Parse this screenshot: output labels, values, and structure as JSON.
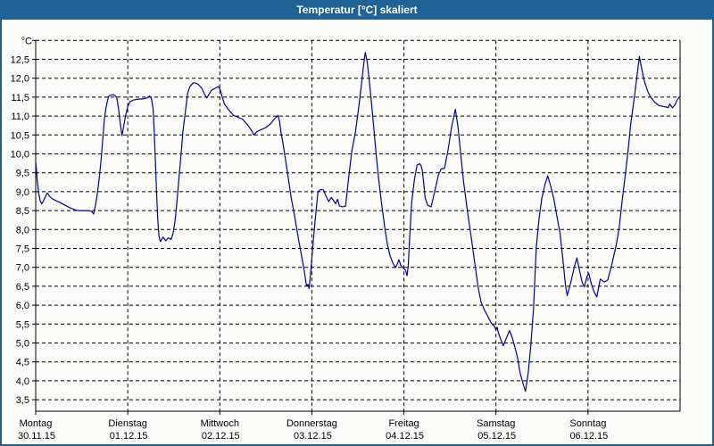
{
  "title": "Temperatur [°C] skaliert",
  "chart_data": {
    "type": "line",
    "title": "Temperatur [°C] skaliert",
    "unit_label": "°C",
    "grid": {
      "style": "dashed",
      "color": "#000000",
      "on": true
    },
    "colors": {
      "frame": "#1f6396",
      "plot_background": "#fcfdfa",
      "axis": "#000000"
    },
    "y_axis": {
      "min": 3.5,
      "max": 12.5,
      "step": 0.5,
      "top_edge_value": 13.0,
      "bottom_edge_value": 3.2,
      "tick_labels": [
        "12,5",
        "12,0",
        "11,5",
        "11,0",
        "10,5",
        "10,0",
        "9,5",
        "9,0",
        "8,5",
        "8,0",
        "7,5",
        "7,0",
        "6,5",
        "6,0",
        "5,5",
        "5,0",
        "4,5",
        "4,0",
        "3,5"
      ]
    },
    "x_axis": {
      "unit": "hours",
      "range_hours": [
        0,
        168
      ],
      "ticks": [
        {
          "day": "Montag",
          "date": "30.11.15"
        },
        {
          "day": "Dienstag",
          "date": "01.12.15"
        },
        {
          "day": "Mittwoch",
          "date": "02.12.15"
        },
        {
          "day": "Donnerstag",
          "date": "03.12.15"
        },
        {
          "day": "Freitag",
          "date": "04.12.15"
        },
        {
          "day": "Samstag",
          "date": "05.12.15"
        },
        {
          "day": "Sonntag",
          "date": "06.12.15"
        }
      ]
    },
    "series": [
      {
        "name": "Temperatur",
        "unit": "°C",
        "color": "#0000a0",
        "points_hour_temp": [
          [
            0,
            9.78
          ],
          [
            0.2,
            9.55
          ],
          [
            0.4,
            9.3
          ],
          [
            0.8,
            8.95
          ],
          [
            1.2,
            8.74
          ],
          [
            1.6,
            8.68
          ],
          [
            2.2,
            8.8
          ],
          [
            3,
            8.97
          ],
          [
            3.6,
            8.88
          ],
          [
            4.2,
            8.82
          ],
          [
            5.3,
            8.76
          ],
          [
            6.5,
            8.71
          ],
          [
            7.7,
            8.64
          ],
          [
            8.8,
            8.58
          ],
          [
            10,
            8.53
          ],
          [
            11.1,
            8.5
          ],
          [
            12.5,
            8.5
          ],
          [
            13.8,
            8.5
          ],
          [
            14.6,
            8.48
          ],
          [
            15.1,
            8.41
          ],
          [
            15.6,
            8.65
          ],
          [
            16,
            8.9
          ],
          [
            16.5,
            9.3
          ],
          [
            17,
            9.8
          ],
          [
            17.5,
            10.4
          ],
          [
            17.9,
            10.9
          ],
          [
            18.3,
            11.2
          ],
          [
            18.7,
            11.4
          ],
          [
            19,
            11.52
          ],
          [
            19.7,
            11.56
          ],
          [
            20.4,
            11.56
          ],
          [
            21.1,
            11.5
          ],
          [
            21.6,
            11.2
          ],
          [
            22,
            10.85
          ],
          [
            22.5,
            10.48
          ],
          [
            22.9,
            10.7
          ],
          [
            23.4,
            11
          ],
          [
            24,
            11.25
          ],
          [
            24.6,
            11.38
          ],
          [
            25.4,
            11.42
          ],
          [
            26.2,
            11.44
          ],
          [
            27.4,
            11.45
          ],
          [
            28.3,
            11.46
          ],
          [
            29.1,
            11.48
          ],
          [
            29.7,
            11.53
          ],
          [
            30.2,
            11.45
          ],
          [
            30.6,
            11.2
          ],
          [
            30.9,
            10.6
          ],
          [
            31.2,
            9.8
          ],
          [
            31.5,
            9
          ],
          [
            31.8,
            8.3
          ],
          [
            32.1,
            7.85
          ],
          [
            32.5,
            7.68
          ],
          [
            33.2,
            7.8
          ],
          [
            33.9,
            7.7
          ],
          [
            34.6,
            7.78
          ],
          [
            35.3,
            7.74
          ],
          [
            35.8,
            7.9
          ],
          [
            36.3,
            8.2
          ],
          [
            36.7,
            8.6
          ],
          [
            37.3,
            9.3
          ],
          [
            37.9,
            10
          ],
          [
            38.4,
            10.6
          ],
          [
            39,
            11.1
          ],
          [
            39.6,
            11.6
          ],
          [
            40.2,
            11.78
          ],
          [
            41.1,
            11.88
          ],
          [
            41.7,
            11.87
          ],
          [
            42.3,
            11.84
          ],
          [
            42.9,
            11.78
          ],
          [
            43.4,
            11.72
          ],
          [
            44,
            11.58
          ],
          [
            44.6,
            11.48
          ],
          [
            45.2,
            11.58
          ],
          [
            45.8,
            11.68
          ],
          [
            46.7,
            11.73
          ],
          [
            47.6,
            11.78
          ],
          [
            48.1,
            11.7
          ],
          [
            48.5,
            11.55
          ],
          [
            49.2,
            11.32
          ],
          [
            50.4,
            11.15
          ],
          [
            51.6,
            11.02
          ],
          [
            52.7,
            10.97
          ],
          [
            53.9,
            10.92
          ],
          [
            55.3,
            10.76
          ],
          [
            56.4,
            10.6
          ],
          [
            56.9,
            10.5
          ],
          [
            57.6,
            10.58
          ],
          [
            58.3,
            10.62
          ],
          [
            59.7,
            10.68
          ],
          [
            61.1,
            10.78
          ],
          [
            62.2,
            10.92
          ],
          [
            63.2,
            11.02
          ],
          [
            63.6,
            10.85
          ],
          [
            63.9,
            10.6
          ],
          [
            64.6,
            10.2
          ],
          [
            65.5,
            9.6
          ],
          [
            66.6,
            8.85
          ],
          [
            67.6,
            8.3
          ],
          [
            68.5,
            7.75
          ],
          [
            69.4,
            7.25
          ],
          [
            70.1,
            6.85
          ],
          [
            70.6,
            6.5
          ],
          [
            71,
            6.55
          ],
          [
            71.3,
            6.44
          ],
          [
            71.8,
            7
          ],
          [
            72.2,
            7.5
          ],
          [
            72.9,
            8.3
          ],
          [
            73.6,
            9
          ],
          [
            74.3,
            9.06
          ],
          [
            75,
            9.05
          ],
          [
            75.7,
            8.88
          ],
          [
            76.4,
            8.74
          ],
          [
            77.1,
            8.85
          ],
          [
            77.7,
            8.76
          ],
          [
            78.2,
            8.68
          ],
          [
            78.7,
            8.8
          ],
          [
            79.2,
            8.62
          ],
          [
            80.1,
            8.6
          ],
          [
            80.8,
            8.62
          ],
          [
            81.5,
            9.3
          ],
          [
            82.4,
            10.06
          ],
          [
            83.4,
            10.6
          ],
          [
            84.3,
            11.3
          ],
          [
            85,
            11.9
          ],
          [
            85.5,
            12.35
          ],
          [
            85.9,
            12.68
          ],
          [
            86.4,
            12.45
          ],
          [
            86.8,
            12.1
          ],
          [
            87.3,
            11.6
          ],
          [
            88,
            10.85
          ],
          [
            88.7,
            10.05
          ],
          [
            89.4,
            9.35
          ],
          [
            90.1,
            8.75
          ],
          [
            91,
            8.05
          ],
          [
            91.7,
            7.6
          ],
          [
            92.4,
            7.3
          ],
          [
            93.1,
            7.12
          ],
          [
            93.8,
            6.99
          ],
          [
            94.3,
            7.1
          ],
          [
            94.7,
            7.2
          ],
          [
            95.2,
            7.05
          ],
          [
            95.7,
            7
          ],
          [
            96.4,
            6.92
          ],
          [
            96.8,
            6.78
          ],
          [
            97.1,
            7
          ],
          [
            97.4,
            7.6
          ],
          [
            98,
            8.7
          ],
          [
            98.7,
            9.3
          ],
          [
            99.4,
            9.7
          ],
          [
            100.1,
            9.74
          ],
          [
            100.5,
            9.68
          ],
          [
            100.8,
            9.55
          ],
          [
            101.2,
            9.2
          ],
          [
            101.5,
            8.85
          ],
          [
            102.2,
            8.64
          ],
          [
            103.1,
            8.6
          ],
          [
            104,
            9
          ],
          [
            105,
            9.45
          ],
          [
            105.7,
            9.6
          ],
          [
            106.6,
            9.62
          ],
          [
            107.5,
            10.1
          ],
          [
            108.4,
            10.7
          ],
          [
            109.4,
            11.18
          ],
          [
            110.1,
            10.7
          ],
          [
            110.8,
            10
          ],
          [
            111.5,
            9.3
          ],
          [
            112.4,
            8.6
          ],
          [
            113.1,
            8.1
          ],
          [
            113.8,
            7.6
          ],
          [
            114.7,
            6.95
          ],
          [
            115.4,
            6.45
          ],
          [
            116.1,
            6.08
          ],
          [
            117,
            5.87
          ],
          [
            117.9,
            5.7
          ],
          [
            118.8,
            5.52
          ],
          [
            119.5,
            5.45
          ],
          [
            120,
            5.35
          ],
          [
            120.3,
            5.42
          ],
          [
            120.6,
            5.28
          ],
          [
            121.4,
            5.05
          ],
          [
            121.9,
            4.93
          ],
          [
            122.6,
            5.1
          ],
          [
            123.5,
            5.33
          ],
          [
            124.2,
            5.15
          ],
          [
            124.9,
            4.9
          ],
          [
            125.6,
            4.62
          ],
          [
            126.3,
            4.2
          ],
          [
            127,
            3.95
          ],
          [
            127.7,
            3.72
          ],
          [
            128.4,
            4.2
          ],
          [
            129.1,
            4.95
          ],
          [
            129.8,
            5.9
          ],
          [
            130.5,
            7.5
          ],
          [
            131.2,
            8.25
          ],
          [
            131.9,
            8.8
          ],
          [
            132.8,
            9.2
          ],
          [
            133.5,
            9.42
          ],
          [
            134.4,
            9.1
          ],
          [
            135.1,
            8.8
          ],
          [
            135.8,
            8.4
          ],
          [
            136.7,
            7.9
          ],
          [
            137.4,
            7.25
          ],
          [
            138.1,
            6.55
          ],
          [
            138.6,
            6.25
          ],
          [
            139.5,
            6.6
          ],
          [
            140.4,
            7
          ],
          [
            141.1,
            7.25
          ],
          [
            141.8,
            6.9
          ],
          [
            142.5,
            6.6
          ],
          [
            143,
            6.48
          ],
          [
            143.7,
            6.75
          ],
          [
            144.2,
            6.84
          ],
          [
            144.9,
            6.55
          ],
          [
            145.6,
            6.35
          ],
          [
            146.3,
            6.22
          ],
          [
            147.2,
            6.69
          ],
          [
            148.2,
            6.61
          ],
          [
            149.1,
            6.66
          ],
          [
            150.2,
            7.07
          ],
          [
            151.4,
            7.62
          ],
          [
            152.1,
            8.03
          ],
          [
            152.8,
            8.68
          ],
          [
            153.7,
            9.43
          ],
          [
            154.4,
            10.06
          ],
          [
            155.1,
            10.77
          ],
          [
            156,
            11.44
          ],
          [
            156.7,
            12
          ],
          [
            157.4,
            12.57
          ],
          [
            158.1,
            12.2
          ],
          [
            158.6,
            11.95
          ],
          [
            159.5,
            11.67
          ],
          [
            160.2,
            11.52
          ],
          [
            161.4,
            11.36
          ],
          [
            162.5,
            11.28
          ],
          [
            163.7,
            11.25
          ],
          [
            164.4,
            11.24
          ],
          [
            164.9,
            11.22
          ],
          [
            165.3,
            11.32
          ],
          [
            166,
            11.22
          ],
          [
            166.7,
            11.3
          ],
          [
            167.2,
            11.42
          ],
          [
            167.9,
            11.52
          ]
        ]
      }
    ]
  }
}
